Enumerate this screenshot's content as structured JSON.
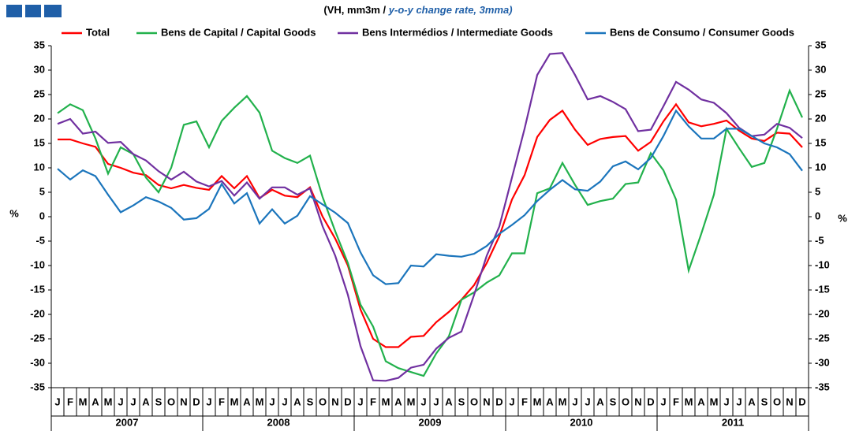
{
  "chart_data": {
    "type": "line",
    "subtitle_parts": [
      "(VH, mm3m / ",
      "y-o-y change rate, 3mma)"
    ],
    "ylabel": "%",
    "categories": [
      "J",
      "F",
      "M",
      "A",
      "M",
      "J",
      "J",
      "A",
      "S",
      "O",
      "N",
      "D",
      "J",
      "F",
      "M",
      "A",
      "M",
      "J",
      "J",
      "A",
      "S",
      "O",
      "N",
      "D",
      "J",
      "F",
      "M",
      "A",
      "M",
      "J",
      "J",
      "A",
      "S",
      "O",
      "N",
      "D",
      "J",
      "F",
      "M",
      "A",
      "M",
      "J",
      "J",
      "A",
      "S",
      "O",
      "N",
      "D",
      "J",
      "F",
      "M",
      "A",
      "M",
      "J",
      "J",
      "A",
      "S",
      "O",
      "N",
      "D"
    ],
    "years": [
      "2007",
      "2008",
      "2009",
      "2010",
      "2011"
    ],
    "ylim": [
      -35,
      35
    ],
    "yticks": [
      -35,
      -30,
      -25,
      -20,
      -15,
      -10,
      -5,
      0,
      5,
      10,
      15,
      20,
      25,
      30,
      35
    ],
    "series": [
      {
        "name": "Total",
        "color": "#ff0000",
        "values": [
          15.8,
          15.8,
          15,
          14.3,
          10.8,
          10,
          9,
          8.5,
          6.5,
          5.8,
          6.5,
          5.9,
          5.5,
          8.3,
          5.8,
          8.3,
          3.8,
          5.5,
          4.3,
          4,
          6,
          0,
          -4.5,
          -10,
          -19,
          -25,
          -26.7,
          -26.7,
          -24.6,
          -24.4,
          -21.6,
          -19.5,
          -17,
          -14,
          -9.5,
          -4,
          3.5,
          8.5,
          16.3,
          19.8,
          21.7,
          17.8,
          14.7,
          15.9,
          16.3,
          16.5,
          13.5,
          15.3,
          19.5,
          23,
          19.3,
          18.5,
          19,
          19.7,
          17.6,
          16,
          15.5,
          17.2,
          17,
          14.2
        ]
      },
      {
        "name": "Bens de Capital / Capital Goods",
        "color": "#22b14c",
        "values": [
          21.2,
          23,
          21.8,
          16,
          8.8,
          14.2,
          12.8,
          8,
          5,
          10,
          18.8,
          19.5,
          14.2,
          19.6,
          22.3,
          24.7,
          21.3,
          13.5,
          12,
          11,
          12.5,
          4,
          -3,
          -9.5,
          -18,
          -22.5,
          -29.6,
          -31,
          -31.8,
          -32.6,
          -28,
          -24.5,
          -17,
          -15.5,
          -13.5,
          -12,
          -7.5,
          -7.5,
          4.8,
          5.8,
          11,
          6.5,
          2.4,
          3.2,
          3.7,
          6.7,
          7,
          13,
          9.5,
          3.5,
          -11,
          -3.5,
          4.5,
          18,
          14,
          10.2,
          11,
          18,
          25.8,
          20.3
        ]
      },
      {
        "name": "Bens Intermédios / Intermediate Goods",
        "color": "#7030a0",
        "values": [
          19,
          20,
          17,
          17.4,
          15.1,
          15.3,
          12.8,
          11.5,
          9.3,
          7.6,
          9.2,
          7.2,
          6.2,
          7.3,
          4.3,
          7,
          3.7,
          6,
          6,
          4.5,
          5.8,
          -2,
          -8,
          -16,
          -26.5,
          -33.5,
          -33.6,
          -33,
          -30.9,
          -30.3,
          -27,
          -24.8,
          -23.5,
          -16,
          -8,
          -2,
          8,
          18,
          29,
          33.3,
          33.5,
          29,
          24,
          24.7,
          23.5,
          22,
          17.5,
          17.8,
          22.6,
          27.6,
          26,
          24,
          23.3,
          21.2,
          18.2,
          16.5,
          16.8,
          19,
          18.2,
          16.1
        ]
      },
      {
        "name": "Bens de Consumo / Consumer Goods",
        "color": "#1b75bc",
        "values": [
          9.8,
          7.6,
          9.5,
          8.3,
          4.5,
          0.9,
          2.3,
          4,
          3.1,
          1.8,
          -0.6,
          -0.3,
          1.6,
          6.7,
          2.7,
          4.8,
          -1.4,
          1.5,
          -1.4,
          0.2,
          4.2,
          2.5,
          0.8,
          -1.3,
          -7.3,
          -12,
          -13.8,
          -13.6,
          -10,
          -10.2,
          -7.7,
          -8,
          -8.2,
          -7.6,
          -6,
          -3.5,
          -1.7,
          0.3,
          3.2,
          5.5,
          7.5,
          5.6,
          5.3,
          7.2,
          10.3,
          11.3,
          9.7,
          12,
          16.5,
          21.7,
          18.5,
          16,
          16,
          18,
          18,
          16.5,
          15,
          14.2,
          12.8,
          9.4
        ]
      }
    ]
  }
}
